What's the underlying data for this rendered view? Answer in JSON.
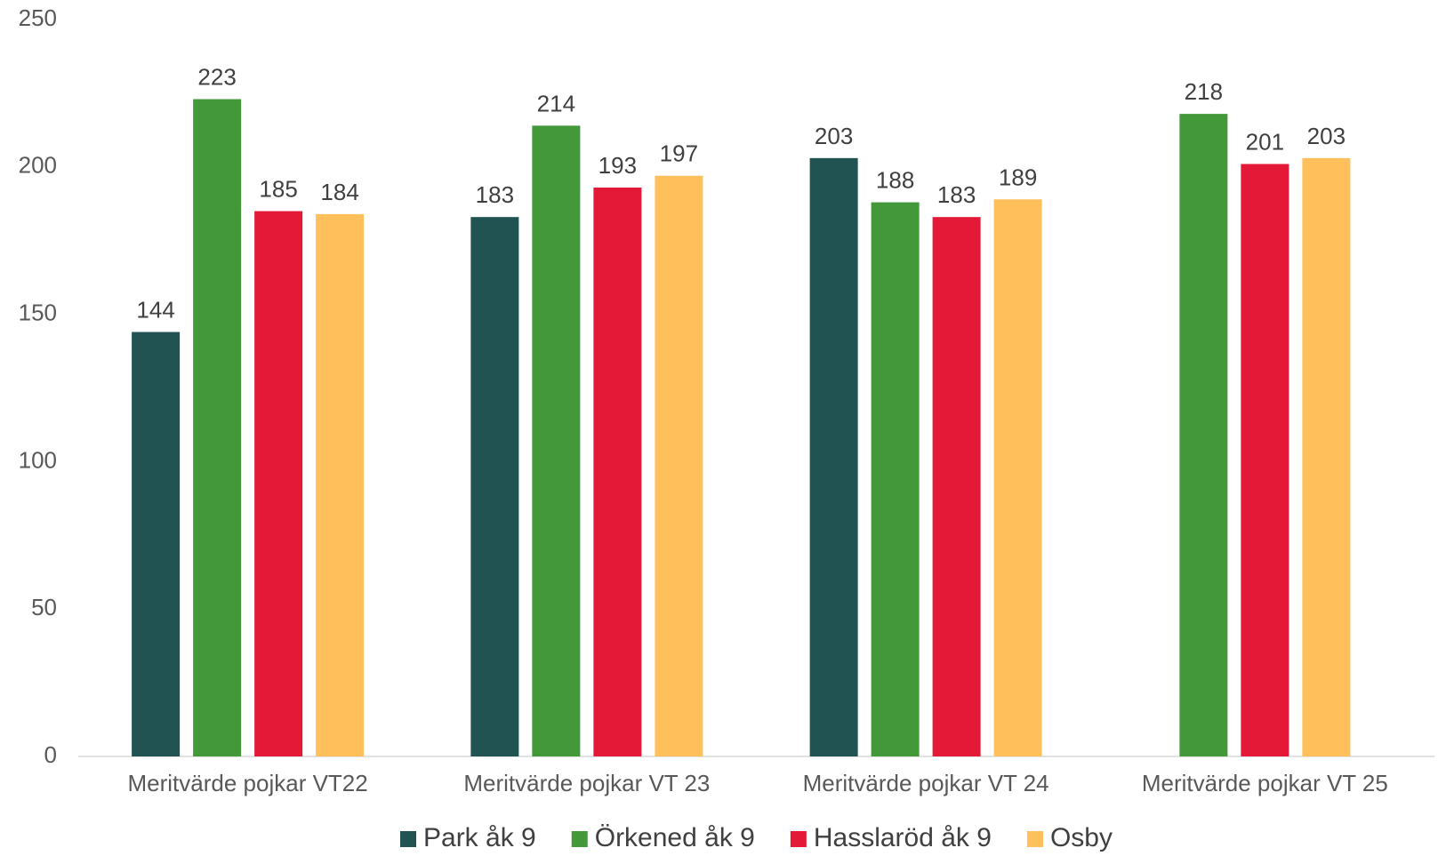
{
  "chart_data": {
    "type": "bar",
    "categories": [
      "Meritvärde pojkar VT22",
      "Meritvärde pojkar VT 23",
      "Meritvärde pojkar VT 24",
      "Meritvärde pojkar VT 25"
    ],
    "series": [
      {
        "name": "Park åk 9",
        "color": "#215352",
        "values": [
          144,
          183,
          203,
          null
        ]
      },
      {
        "name": "Örkened åk 9",
        "color": "#43983a",
        "values": [
          223,
          214,
          188,
          218
        ]
      },
      {
        "name": "Hasslaröd åk 9",
        "color": "#e31937",
        "values": [
          185,
          193,
          183,
          201
        ]
      },
      {
        "name": "Osby",
        "color": "#ffbf5a",
        "values": [
          184,
          197,
          189,
          203
        ]
      }
    ],
    "ylim": [
      0,
      250
    ],
    "yticks": [
      0,
      50,
      100,
      150,
      200,
      250
    ],
    "grid": false,
    "legend_position": "bottom"
  }
}
